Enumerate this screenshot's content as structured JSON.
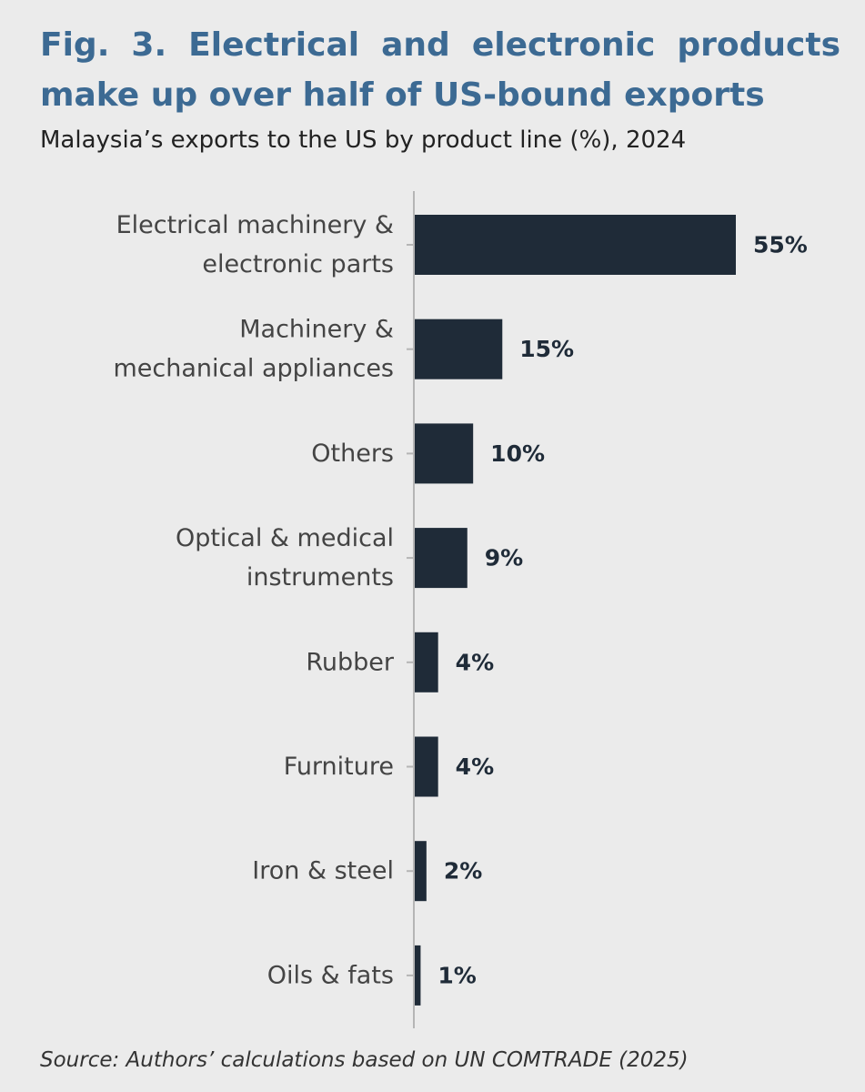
{
  "chart_data": {
    "type": "bar",
    "orientation": "horizontal",
    "title": "Fig. 3. Electrical and electronic products make up over half of US-bound exports",
    "subtitle": "Malaysia’s exports to the US by product line (%), 2024",
    "categories": [
      [
        "Electrical machinery &",
        "electronic parts"
      ],
      [
        "Machinery &",
        "mechanical appliances"
      ],
      [
        "Others"
      ],
      [
        "Optical & medical",
        "instruments"
      ],
      [
        "Rubber"
      ],
      [
        "Furniture"
      ],
      [
        "Iron & steel"
      ],
      [
        "Oils & fats"
      ]
    ],
    "values": [
      55,
      15,
      10,
      9,
      4,
      4,
      2,
      1
    ],
    "data_labels": [
      "55%",
      "15%",
      "10%",
      "9%",
      "4%",
      "4%",
      "2%",
      "1%"
    ],
    "unit": "%",
    "xlim": [
      0,
      60
    ],
    "grid": false,
    "legend": "none",
    "bar_color": "#1f2b38",
    "title_color": "#3c6a93",
    "source": "Source: Authors’ calculations based on UN COMTRADE (2025)"
  }
}
